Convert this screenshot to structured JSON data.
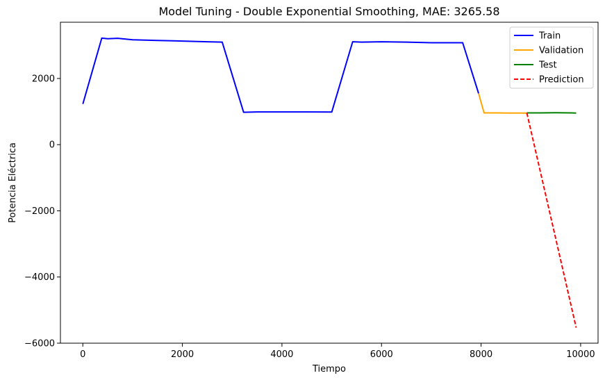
{
  "chart_data": {
    "type": "line",
    "title": "Model Tuning - Double Exponential Smoothing, MAE: 3265.58",
    "xlabel": "Tiempo",
    "ylabel": "Potencia Eléctrica",
    "xlim": [
      -450,
      10350
    ],
    "ylim": [
      -6000,
      3700
    ],
    "xticks": [
      0,
      2000,
      4000,
      6000,
      8000,
      10000
    ],
    "xtick_labels": [
      "0",
      "2000",
      "4000",
      "6000",
      "8000",
      "10000"
    ],
    "yticks": [
      2000,
      0,
      -2000,
      -4000,
      -6000
    ],
    "ytick_labels": [
      "2000",
      "0",
      "−2000",
      "−4000",
      "−6000"
    ],
    "grid": false,
    "legend_position": "top-right",
    "series": [
      {
        "name": "Train",
        "color": "#0000ff",
        "style": "solid",
        "x": [
          0,
          380,
          500,
          700,
          1000,
          1500,
          2000,
          2500,
          2800,
          3230,
          3500,
          4000,
          4500,
          5000,
          5420,
          5600,
          6000,
          6500,
          7000,
          7500,
          7630,
          7950
        ],
        "y": [
          1230,
          3220,
          3200,
          3215,
          3170,
          3150,
          3130,
          3110,
          3100,
          980,
          990,
          990,
          990,
          985,
          3110,
          3100,
          3110,
          3100,
          3080,
          3080,
          3080,
          1550
        ]
      },
      {
        "name": "Validation",
        "color": "#ffa500",
        "style": "solid",
        "x": [
          7950,
          8060,
          8300,
          8600,
          8920
        ],
        "y": [
          1550,
          960,
          960,
          955,
          955
        ]
      },
      {
        "name": "Test",
        "color": "#008000",
        "style": "solid",
        "x": [
          8920,
          9200,
          9500,
          9800,
          9910
        ],
        "y": [
          960,
          960,
          965,
          960,
          955
        ]
      },
      {
        "name": "Prediction",
        "color": "#ff0000",
        "style": "dashed",
        "x": [
          8920,
          9910
        ],
        "y": [
          960,
          -5530
        ]
      }
    ]
  }
}
